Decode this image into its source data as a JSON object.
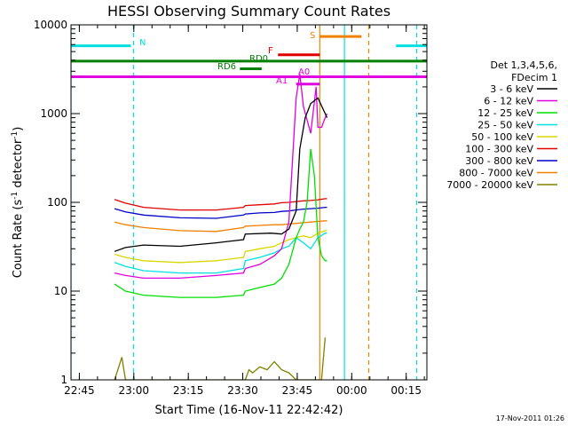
{
  "chart_data": {
    "type": "line",
    "title": "HESSI Observing Summary Count Rates",
    "xlabel": "Start Time (16-Nov-11 22:42:42)",
    "ylabel_main": "Count Rate (s",
    "ylabel_sup1": "-1",
    "ylabel_mid": " detector",
    "ylabel_sup2": "-1",
    "ylabel_end": ")",
    "x_unit": "minutes after 22:42:42",
    "xlim": [
      0,
      98
    ],
    "ylim": [
      1,
      10000
    ],
    "yscale": "log",
    "grid": false,
    "x_ticks": [
      {
        "label": "22:45",
        "value": 2.3
      },
      {
        "label": "23:00",
        "value": 17.3
      },
      {
        "label": "23:15",
        "value": 32.3
      },
      {
        "label": "23:30",
        "value": 47.3
      },
      {
        "label": "23:45",
        "value": 62.3
      },
      {
        "label": "00:00",
        "value": 77.3
      },
      {
        "label": "00:15",
        "value": 92.3
      }
    ],
    "y_ticks": [
      {
        "label": "1",
        "value": 1
      },
      {
        "label": "10",
        "value": 10
      },
      {
        "label": "100",
        "value": 100
      },
      {
        "label": "1000",
        "value": 1000
      },
      {
        "label": "10000",
        "value": 10000
      }
    ],
    "legend": {
      "placement": "right",
      "header1": "Det 1,3,4,5,6,",
      "header2": "FDecim 1",
      "entries": [
        {
          "label": "3 - 6 keV",
          "color": "#000000"
        },
        {
          "label": "6 - 12 keV",
          "color": "#e000e0"
        },
        {
          "label": "12 - 25 keV",
          "color": "#00e000"
        },
        {
          "label": "25 - 50 keV",
          "color": "#00e0e0"
        },
        {
          "label": "50 - 100 keV",
          "color": "#d8d800"
        },
        {
          "label": "100 - 300 keV",
          "color": "#e00000"
        },
        {
          "label": "300 - 800 keV",
          "color": "#0000c8"
        },
        {
          "label": "800 - 7000 keV",
          "color": "#f08000"
        },
        {
          "label": "7000 - 20000 keV",
          "color": "#808000"
        }
      ]
    },
    "series": [
      {
        "name": "3 - 6 keV",
        "color": "#000000",
        "points": [
          [
            12,
            28
          ],
          [
            15,
            31
          ],
          [
            20,
            33
          ],
          [
            30,
            32
          ],
          [
            40,
            35
          ],
          [
            47.5,
            38
          ],
          [
            48,
            44
          ],
          [
            55,
            45
          ],
          [
            58,
            44
          ],
          [
            60,
            50
          ],
          [
            62,
            80
          ],
          [
            63,
            400
          ],
          [
            64.5,
            900
          ],
          [
            66,
            1300
          ],
          [
            68,
            1500
          ],
          [
            70,
            1000
          ],
          [
            70.5,
            900
          ]
        ]
      },
      {
        "name": "6 - 12 keV",
        "color": "#e000e0",
        "points": [
          [
            12,
            16
          ],
          [
            15,
            15
          ],
          [
            20,
            14
          ],
          [
            30,
            14
          ],
          [
            40,
            15
          ],
          [
            47.5,
            16
          ],
          [
            48,
            18
          ],
          [
            52,
            20
          ],
          [
            56,
            25
          ],
          [
            58,
            30
          ],
          [
            60,
            60
          ],
          [
            61,
            300
          ],
          [
            62,
            1500
          ],
          [
            63,
            2800
          ],
          [
            64,
            1200
          ],
          [
            66,
            600
          ],
          [
            67.5,
            2000
          ],
          [
            68,
            700
          ],
          [
            69,
            700
          ],
          [
            70,
            900
          ],
          [
            70.5,
            1000
          ]
        ]
      },
      {
        "name": "12 - 25 keV",
        "color": "#00e000",
        "points": [
          [
            12,
            12
          ],
          [
            15,
            10
          ],
          [
            20,
            9
          ],
          [
            30,
            8.5
          ],
          [
            40,
            8.5
          ],
          [
            47.5,
            9
          ],
          [
            48,
            10
          ],
          [
            52,
            11
          ],
          [
            56,
            12
          ],
          [
            58,
            14
          ],
          [
            60,
            20
          ],
          [
            62,
            40
          ],
          [
            63,
            50
          ],
          [
            64,
            60
          ],
          [
            65,
            100
          ],
          [
            66,
            400
          ],
          [
            67,
            200
          ],
          [
            68,
            40
          ],
          [
            69,
            25
          ],
          [
            70,
            22
          ],
          [
            70.5,
            22
          ]
        ]
      },
      {
        "name": "25 - 50 keV",
        "color": "#00e0e0",
        "points": [
          [
            12,
            21
          ],
          [
            15,
            19
          ],
          [
            20,
            17
          ],
          [
            30,
            16
          ],
          [
            40,
            16
          ],
          [
            47.5,
            18
          ],
          [
            48,
            22
          ],
          [
            52,
            24
          ],
          [
            56,
            27
          ],
          [
            58,
            30
          ],
          [
            60,
            32
          ],
          [
            62,
            40
          ],
          [
            64,
            35
          ],
          [
            66,
            30
          ],
          [
            68,
            40
          ],
          [
            70,
            45
          ],
          [
            70.5,
            45
          ]
        ]
      },
      {
        "name": "50 - 100 keV",
        "color": "#d8d800",
        "points": [
          [
            12,
            26
          ],
          [
            15,
            24
          ],
          [
            20,
            22
          ],
          [
            30,
            21
          ],
          [
            40,
            22
          ],
          [
            47.5,
            24
          ],
          [
            48,
            28
          ],
          [
            52,
            30
          ],
          [
            56,
            32
          ],
          [
            58,
            35
          ],
          [
            60,
            38
          ],
          [
            62,
            40
          ],
          [
            64,
            42
          ],
          [
            66,
            40
          ],
          [
            68,
            45
          ],
          [
            70,
            48
          ],
          [
            70.5,
            48
          ]
        ]
      },
      {
        "name": "100 - 300 keV",
        "color": "#e00000",
        "points": [
          [
            12,
            108
          ],
          [
            15,
            98
          ],
          [
            20,
            88
          ],
          [
            30,
            82
          ],
          [
            40,
            82
          ],
          [
            47.5,
            88
          ],
          [
            48,
            92
          ],
          [
            52,
            94
          ],
          [
            56,
            96
          ],
          [
            58,
            99
          ],
          [
            60,
            100
          ],
          [
            62,
            102
          ],
          [
            64,
            104
          ],
          [
            66,
            105
          ],
          [
            68,
            107
          ],
          [
            70,
            110
          ],
          [
            70.5,
            110
          ]
        ]
      },
      {
        "name": "300 - 800 keV",
        "color": "#0000c8",
        "points": [
          [
            12,
            85
          ],
          [
            15,
            78
          ],
          [
            20,
            72
          ],
          [
            30,
            67
          ],
          [
            40,
            66
          ],
          [
            47.5,
            72
          ],
          [
            48,
            74
          ],
          [
            52,
            76
          ],
          [
            56,
            77
          ],
          [
            58,
            79
          ],
          [
            60,
            80
          ],
          [
            62,
            82
          ],
          [
            64,
            84
          ],
          [
            66,
            85
          ],
          [
            68,
            86
          ],
          [
            70,
            88
          ],
          [
            70.5,
            88
          ]
        ]
      },
      {
        "name": "800 - 7000 keV",
        "color": "#f08000",
        "points": [
          [
            12,
            60
          ],
          [
            15,
            56
          ],
          [
            20,
            52
          ],
          [
            30,
            48
          ],
          [
            40,
            47
          ],
          [
            47.5,
            52
          ],
          [
            48,
            54
          ],
          [
            52,
            55
          ],
          [
            56,
            56
          ],
          [
            58,
            56
          ],
          [
            60,
            57
          ],
          [
            62,
            58
          ],
          [
            64,
            59
          ],
          [
            66,
            60
          ],
          [
            68,
            61
          ],
          [
            70,
            62
          ],
          [
            70.5,
            62
          ]
        ]
      },
      {
        "name": "7000 - 20000 keV",
        "color": "#808000",
        "points": [
          [
            12,
            1
          ],
          [
            14,
            1.8
          ],
          [
            15,
            1
          ],
          [
            48,
            1
          ],
          [
            49,
            1.3
          ],
          [
            50,
            1.2
          ],
          [
            52,
            1.4
          ],
          [
            54,
            1.3
          ],
          [
            56,
            1.6
          ],
          [
            58,
            1.3
          ],
          [
            60,
            1.2
          ],
          [
            62,
            1
          ],
          [
            69,
            1
          ],
          [
            70,
            3
          ]
        ]
      }
    ],
    "state_bars": [
      {
        "label": "N",
        "color": "#00e0e0",
        "y": 5800,
        "segments": [
          [
            0,
            16.5
          ],
          [
            89.5,
            98
          ]
        ]
      },
      {
        "label": "S",
        "color": "#f08000",
        "y": 7400,
        "segments": [
          [
            68.5,
            80
          ]
        ]
      },
      {
        "label": "F",
        "color": "#e00000",
        "y": 4600,
        "segments": [
          [
            57,
            68.5
          ]
        ]
      },
      {
        "label": "RD0",
        "color": "#008000",
        "y": 3900,
        "segments": [
          [
            0,
            98
          ]
        ]
      },
      {
        "label": "RD6",
        "color": "#008000",
        "y": 3200,
        "segments": [
          [
            46.5,
            52.5
          ]
        ]
      },
      {
        "label": "A1",
        "color": "#e000e0",
        "y": 2600,
        "segments": [
          [
            0,
            98
          ]
        ]
      },
      {
        "label": "A0",
        "color": "#e000e0",
        "y": 2150,
        "segments": [
          [
            62,
            68.5
          ]
        ]
      }
    ],
    "vlines": [
      {
        "x": 0,
        "color": "#00e0e0",
        "style": "solid"
      },
      {
        "x": 17.2,
        "color": "#00e0e0",
        "style": "dashed"
      },
      {
        "x": 68.5,
        "color": "#f08000",
        "style": "solid"
      },
      {
        "x": 75.3,
        "color": "#00e0e0",
        "style": "solid"
      },
      {
        "x": 82,
        "color": "#f08000",
        "style": "dashed"
      },
      {
        "x": 95.2,
        "color": "#00e0e0",
        "style": "dashed"
      }
    ],
    "footer": "17-Nov-2011 01:26"
  }
}
